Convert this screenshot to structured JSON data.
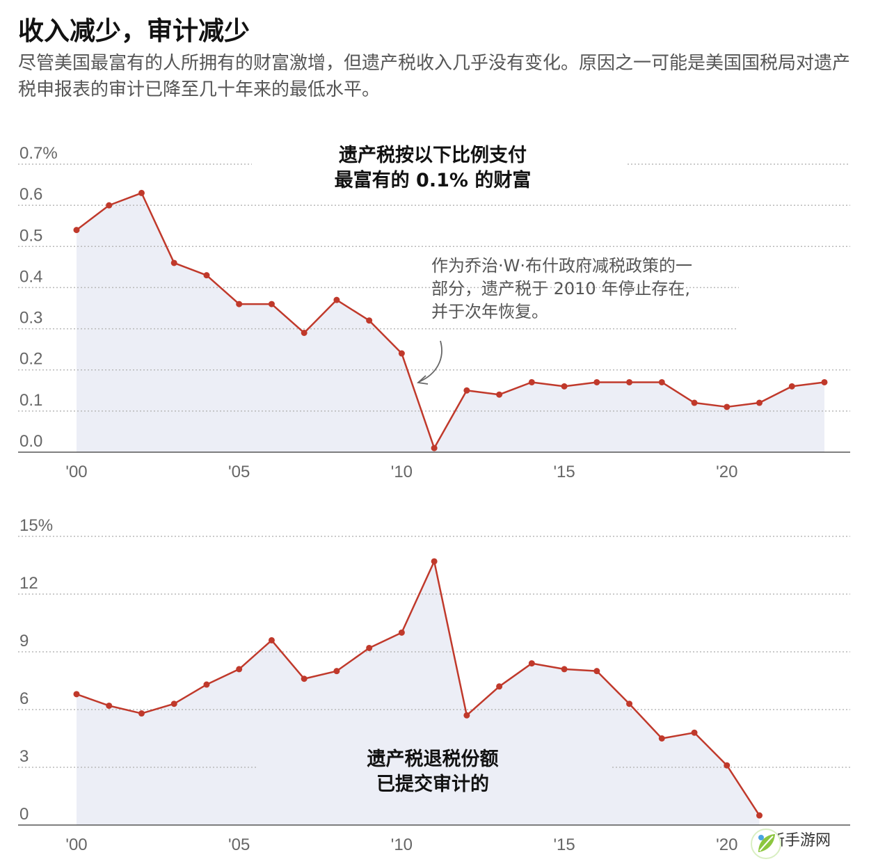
{
  "header": {
    "title": "收入减少，审计减少",
    "subtitle": "尽管美国最富有的人所拥有的财富激增，但遗产税收入几乎没有变化。原因之一可能是美国国税局对遗产税申报表的审计已降至几十年来的最低水平。"
  },
  "colors": {
    "line": "#c0392b",
    "area": "#eceef6",
    "grid": "#b8b8b8",
    "axis": "#555555"
  },
  "watermark": {
    "text": "高新手游网",
    "icon": "leaf-logo-icon"
  },
  "chart_data": [
    {
      "type": "area",
      "annotation": [
        "遗产税按以下比例支付",
        "最富有的 0.1% 的财富"
      ],
      "note": [
        "作为乔治·W·布什政府减税政策的一",
        "部分，遗产税于 2010 年停止存在,",
        "并于次年恢复。"
      ],
      "x_ticks": [
        "'00",
        "'05",
        "'10",
        "'15",
        "'20"
      ],
      "y_ticks": [
        "0.0",
        "0.1",
        "0.2",
        "0.3",
        "0.4",
        "0.5",
        "0.6",
        "0.7%"
      ],
      "ylim": [
        0,
        0.7
      ],
      "grid": true,
      "x": [
        2000,
        2001,
        2002,
        2003,
        2004,
        2005,
        2006,
        2007,
        2008,
        2009,
        2010,
        2011,
        2012,
        2013,
        2014,
        2015,
        2016,
        2017,
        2018,
        2019,
        2020,
        2021,
        2022,
        2023
      ],
      "values": [
        0.54,
        0.6,
        0.63,
        0.46,
        0.43,
        0.36,
        0.36,
        0.29,
        0.37,
        0.32,
        0.24,
        0.01,
        0.15,
        0.14,
        0.17,
        0.16,
        0.17,
        0.17,
        0.17,
        0.12,
        0.11,
        0.12,
        0.16,
        0.17
      ]
    },
    {
      "type": "area",
      "annotation": [
        "遗产税退税份额",
        "已提交审计的"
      ],
      "x_ticks": [
        "'00",
        "'05",
        "'10",
        "'15",
        "'20"
      ],
      "y_ticks": [
        "0",
        "3",
        "6",
        "9",
        "12",
        "15%"
      ],
      "ylim": [
        0,
        15
      ],
      "grid": true,
      "x": [
        2000,
        2001,
        2002,
        2003,
        2004,
        2005,
        2006,
        2007,
        2008,
        2009,
        2010,
        2011,
        2012,
        2013,
        2014,
        2015,
        2016,
        2017,
        2018,
        2019,
        2020,
        2021
      ],
      "values": [
        6.8,
        6.2,
        5.8,
        6.3,
        7.3,
        8.1,
        9.6,
        7.6,
        8.0,
        9.2,
        10.0,
        13.7,
        5.7,
        7.2,
        8.4,
        8.1,
        8.0,
        6.3,
        4.5,
        4.8,
        3.1,
        0.5
      ]
    }
  ]
}
